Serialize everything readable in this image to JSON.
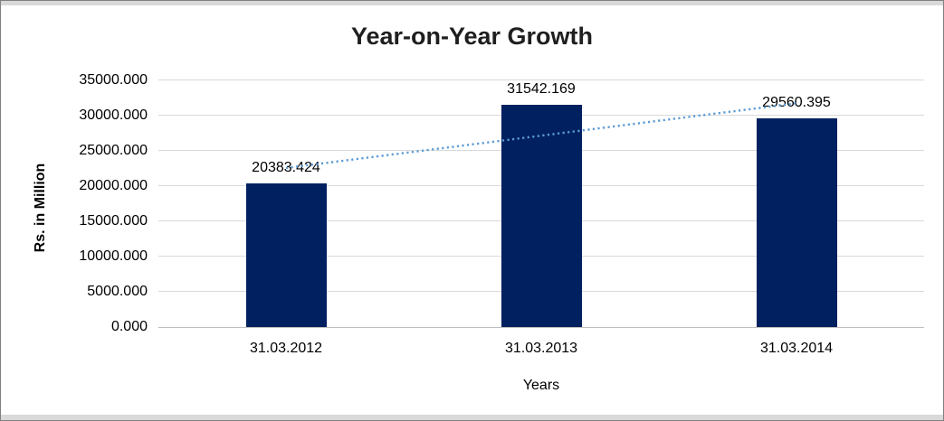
{
  "window": {
    "border_color": "#7f7f7f",
    "strip_color": "#d9d9d9"
  },
  "chart_data": {
    "type": "bar",
    "title": "Year-on-Year Growth",
    "xlabel": "Years",
    "ylabel": "Rs. in Million",
    "categories": [
      "31.03.2012",
      "31.03.2013",
      "31.03.2014"
    ],
    "values": [
      20383.424,
      31542.169,
      29560.395
    ],
    "value_labels": [
      "20383.424",
      "31542.169",
      "29560.395"
    ],
    "y_ticks": [
      "0.000",
      "5000.000",
      "10000.000",
      "15000.000",
      "20000.000",
      "25000.000",
      "30000.000",
      "35000.000"
    ],
    "ylim": [
      0,
      35000
    ],
    "grid": true,
    "legend": false,
    "bar_color": "#002060",
    "gridline_color": "#d9d9d9",
    "axis_line_color": "#bfbfbf",
    "trendline": {
      "type": "linear",
      "style": "dotted",
      "color": "#5b9bd5"
    }
  }
}
